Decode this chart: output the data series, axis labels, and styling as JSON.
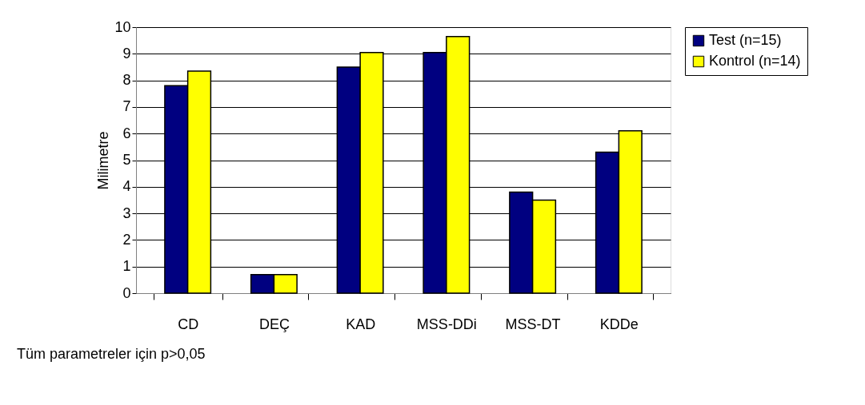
{
  "chart_data": {
    "type": "bar",
    "ylabel": "Milimetre",
    "categories": [
      "CD",
      "DEÇ",
      "KAD",
      "MSS-DDi",
      "MSS-DT",
      "KDDe"
    ],
    "series": [
      {
        "name": "Test (n=15)",
        "color": "#000080",
        "values": [
          7.8,
          0.7,
          8.5,
          9.05,
          3.8,
          5.3
        ]
      },
      {
        "name": "Kontrol (n=14)",
        "color": "#ffff00",
        "values": [
          8.35,
          0.7,
          9.05,
          9.65,
          3.5,
          6.1
        ]
      }
    ],
    "ylim": [
      0,
      10
    ],
    "yticks": [
      0,
      1,
      2,
      3,
      4,
      5,
      6,
      7,
      8,
      9,
      10
    ],
    "grid": "y",
    "legend": "right",
    "annotations": [
      "Tüm parametreler için p>0,05"
    ]
  }
}
